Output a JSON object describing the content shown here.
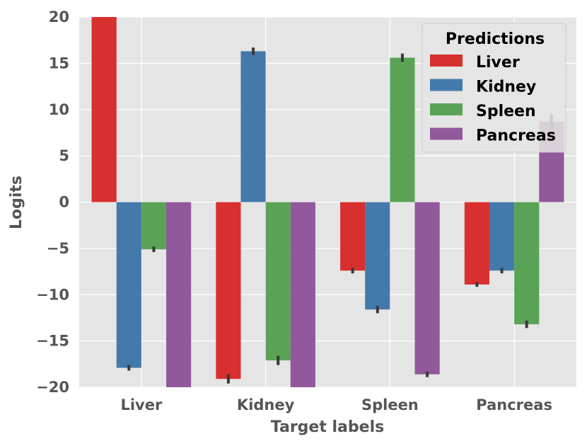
{
  "chart_data": {
    "type": "bar",
    "title": "",
    "xlabel": "Target labels",
    "ylabel": "Logits",
    "ylim": [
      -20,
      20
    ],
    "yticks": [
      20,
      15,
      10,
      5,
      0,
      -5,
      -10,
      -15,
      -20
    ],
    "ytick_labels": [
      "20",
      "15",
      "10",
      "5",
      "0",
      "−5",
      "−10",
      "−15",
      "−20"
    ],
    "categories": [
      "Liver",
      "Kidney",
      "Spleen",
      "Pancreas"
    ],
    "grid": true,
    "legend_position": "top-right",
    "legend_title": "Predictions",
    "series": [
      {
        "name": "Liver",
        "color": "#d7302f",
        "values": [
          20.0,
          -19.1,
          -7.4,
          -8.9
        ],
        "errors": [
          0.0,
          0.5,
          0.3,
          0.25
        ]
      },
      {
        "name": "Kidney",
        "color": "#4479ab",
        "values": [
          -17.9,
          16.3,
          -11.6,
          -7.4
        ],
        "errors": [
          0.3,
          0.4,
          0.4,
          0.3
        ]
      },
      {
        "name": "Spleen",
        "color": "#5aa356",
        "values": [
          -5.1,
          -17.1,
          15.6,
          -13.2
        ],
        "errors": [
          0.3,
          0.5,
          0.45,
          0.4
        ]
      },
      {
        "name": "Pancreas",
        "color": "#91589c",
        "values": [
          -20.0,
          -20.0,
          -18.6,
          8.7
        ],
        "errors": [
          0.0,
          0.0,
          0.3,
          0.8
        ]
      }
    ],
    "error_color": "#3a3a3a"
  }
}
